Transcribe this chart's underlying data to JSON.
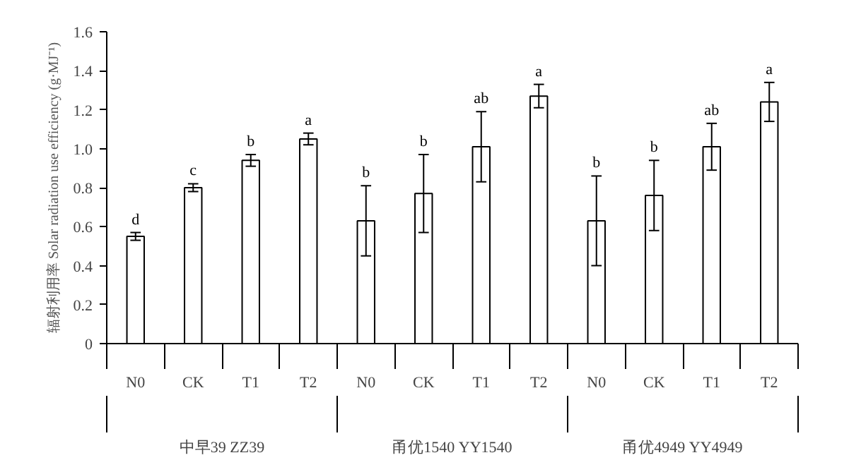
{
  "chart_data": {
    "type": "bar",
    "ylabel": "辐射利用率 Solar radiation use efficiency (g·MJ⁻¹)",
    "categories": [
      "N0",
      "CK",
      "T1",
      "T2",
      "N0",
      "CK",
      "T1",
      "T2",
      "N0",
      "CK",
      "T1",
      "T2"
    ],
    "values": [
      0.55,
      0.8,
      0.94,
      1.05,
      0.63,
      0.77,
      1.01,
      1.27,
      0.63,
      0.76,
      1.01,
      1.24
    ],
    "errors": [
      0.02,
      0.02,
      0.03,
      0.03,
      0.18,
      0.2,
      0.18,
      0.06,
      0.23,
      0.18,
      0.12,
      0.1
    ],
    "value_labels": [
      "d",
      "c",
      "b",
      "a",
      "b",
      "b",
      "ab",
      "a",
      "b",
      "b",
      "ab",
      "a"
    ],
    "color": "#ffffff",
    "annotations": [
      "中早39 ZZ39",
      "甬优1540 YY1540",
      "甬优4949 YY4949"
    ],
    "ylim": [
      0,
      1.6
    ],
    "yticks": [
      0,
      0.2,
      0.4,
      0.6,
      0.8,
      {
        "value": 1,
        "label": "1.0"
      },
      1.2,
      1.4,
      1.6
    ],
    "grid": false
  }
}
